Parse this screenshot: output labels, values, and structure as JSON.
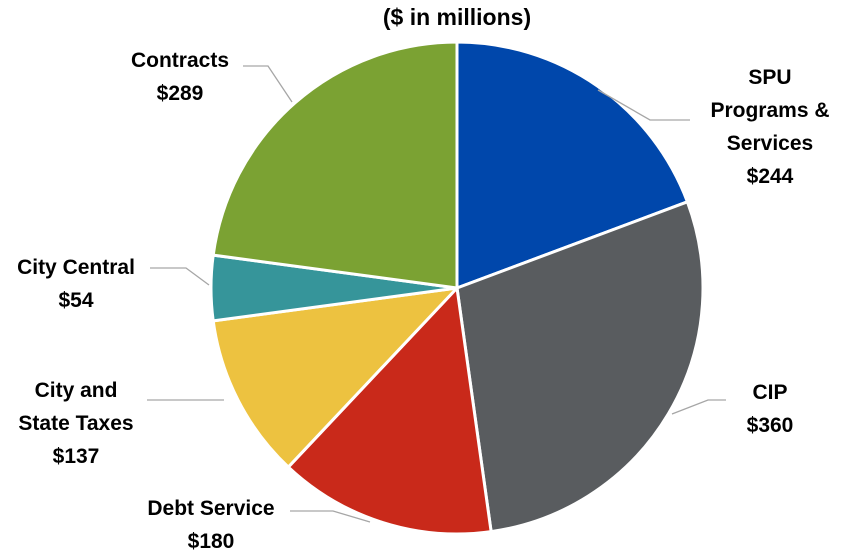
{
  "chart_data": {
    "type": "pie",
    "title": "($ in millions)",
    "slices": [
      {
        "label": "SPU Programs & Services",
        "label_lines": [
          "SPU",
          "Programs &",
          "Services"
        ],
        "value_label": "$244",
        "value": 244,
        "color": "#0047AB"
      },
      {
        "label": "CIP",
        "label_lines": [
          "CIP"
        ],
        "value_label": "$360",
        "value": 360,
        "color": "#595C5F"
      },
      {
        "label": "Debt Service",
        "label_lines": [
          "Debt Service"
        ],
        "value_label": "$180",
        "value": 180,
        "color": "#C9291A"
      },
      {
        "label": "City and State Taxes",
        "label_lines": [
          "City and",
          "State Taxes"
        ],
        "value_label": "$137",
        "value": 137,
        "color": "#EDC240"
      },
      {
        "label": "City Central",
        "label_lines": [
          "City Central"
        ],
        "value_label": "$54",
        "value": 54,
        "color": "#36959A"
      },
      {
        "label": "Contracts",
        "label_lines": [
          "Contracts"
        ],
        "value_label": "$289",
        "value": 289,
        "color": "#7BA233"
      }
    ],
    "start_angle": "12 o'clock",
    "direction": "clockwise",
    "legend": "none"
  }
}
